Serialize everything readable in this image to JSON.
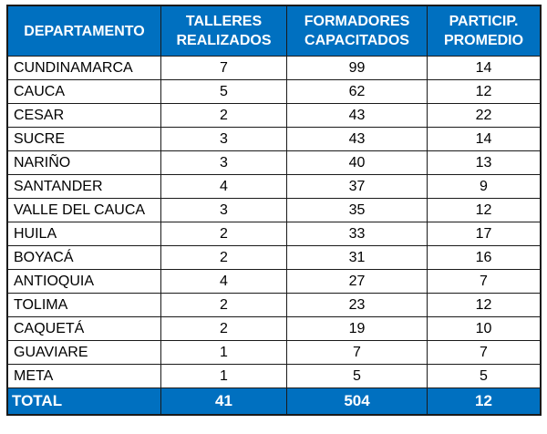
{
  "header": {
    "departamento": "DEPARTAMENTO",
    "talleres": [
      "TALLERES",
      "REALIZADOS"
    ],
    "formadores": [
      "FORMADORES",
      "CAPACITADOS"
    ],
    "particip": [
      "PARTICIP.",
      "PROMEDIO"
    ]
  },
  "rows": [
    {
      "departamento": "CUNDINAMARCA",
      "talleres": "7",
      "formadores": "99",
      "particip": "14"
    },
    {
      "departamento": "CAUCA",
      "talleres": "5",
      "formadores": "62",
      "particip": "12"
    },
    {
      "departamento": "CESAR",
      "talleres": "2",
      "formadores": "43",
      "particip": "22"
    },
    {
      "departamento": "SUCRE",
      "talleres": "3",
      "formadores": "43",
      "particip": "14"
    },
    {
      "departamento": "NARIÑO",
      "talleres": "3",
      "formadores": "40",
      "particip": "13"
    },
    {
      "departamento": "SANTANDER",
      "talleres": "4",
      "formadores": "37",
      "particip": "9"
    },
    {
      "departamento": "VALLE DEL CAUCA",
      "talleres": "3",
      "formadores": "35",
      "particip": "12"
    },
    {
      "departamento": "HUILA",
      "talleres": "2",
      "formadores": "33",
      "particip": "17"
    },
    {
      "departamento": "BOYACÁ",
      "talleres": "2",
      "formadores": "31",
      "particip": "16"
    },
    {
      "departamento": "ANTIOQUIA",
      "talleres": "4",
      "formadores": "27",
      "particip": "7"
    },
    {
      "departamento": "TOLIMA",
      "talleres": "2",
      "formadores": "23",
      "particip": "12"
    },
    {
      "departamento": "CAQUETÁ",
      "talleres": "2",
      "formadores": "19",
      "particip": "10"
    },
    {
      "departamento": "GUAVIARE",
      "talleres": "1",
      "formadores": "7",
      "particip": "7"
    },
    {
      "departamento": "META",
      "talleres": "1",
      "formadores": "5",
      "particip": "5"
    }
  ],
  "total": {
    "label": "TOTAL",
    "talleres": "41",
    "formadores": "504",
    "particip": "12"
  },
  "colors": {
    "header_bg": "#0070c0",
    "header_text": "#ffffff",
    "border": "#1a1a1a"
  }
}
